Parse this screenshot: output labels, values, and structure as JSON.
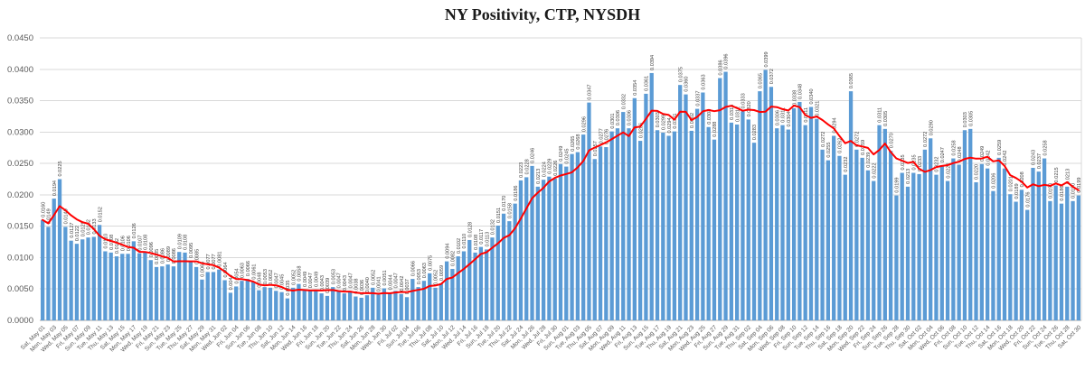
{
  "chart_data": {
    "type": "bar",
    "title": "NY Positivity, CTP, NYSDH",
    "xlabel": "",
    "ylabel": "",
    "ylim": [
      0.0,
      0.045
    ],
    "grid": true,
    "legend": "none",
    "y_ticks": [
      "0.0000",
      "0.0050",
      "0.0100",
      "0.0150",
      "0.0200",
      "0.0250",
      "0.0300",
      "0.0350",
      "0.0400",
      "0.0450"
    ],
    "bar_color": "#5B9BD5",
    "label_color": "#404040",
    "tick_color": "#595959",
    "grid_color": "#D9D9D9",
    "trend_line": {
      "type": "moving_average",
      "window": 7,
      "color": "#FF0000"
    },
    "x_label_every": 2,
    "x_labels": [
      "Sat, May 01",
      "Mon, May 03",
      "Wed, May 05",
      "Fri, May 07",
      "Sun, May 09",
      "Tue, May 11",
      "Thu, May 13",
      "Sat, May 15",
      "Mon, May 17",
      "Wed, May 19",
      "Fri, May 21",
      "Sun, May 23",
      "Tue, May 25",
      "Thu, May 27",
      "Sat, May 29",
      "Mon, May 31",
      "Wed, Jun 02",
      "Fri, Jun 04",
      "Sun, Jun 06",
      "Tue, Jun 08",
      "Thu, Jun 10",
      "Sat, Jun 12",
      "Mon, Jun 14",
      "Wed, Jun 16",
      "Fri, Jun 18",
      "Sun, Jun 20",
      "Tue, Jun 22",
      "Thu, Jun 24",
      "Sat, Jun 26",
      "Mon, Jun 28",
      "Wed, Jun 30",
      "Fri, Jul 02",
      "Sun, Jul 04",
      "Tue, Jul 06",
      "Thu, Jul 08",
      "Sat, Jul 10",
      "Mon, Jul 12",
      "Wed, Jul 14",
      "Fri, Jul 16",
      "Sun, Jul 18",
      "Tue, Jul 20",
      "Thu, Jul 22",
      "Sat, Jul 24",
      "Mon, Jul 26",
      "Wed, Jul 28",
      "Fri, Jul 30",
      "Sun, Aug 01",
      "Tue, Aug 03",
      "Thu, Aug 05",
      "Sat, Aug 07",
      "Mon, Aug 09",
      "Wed, Aug 11",
      "Fri, Aug 13",
      "Sun, Aug 15",
      "Tue, Aug 17",
      "Thu, Aug 19",
      "Sat, Aug 21",
      "Mon, Aug 23",
      "Wed, Aug 25",
      "Fri, Aug 27",
      "Sun, Aug 29",
      "Tue, Aug 31",
      "Thu, Sep 02",
      "Sat, Sep 04",
      "Mon, Sep 06",
      "Wed, Sep 08",
      "Fri, Sep 10",
      "Sun, Sep 12",
      "Tue, Sep 14",
      "Thu, Sep 16",
      "Sat, Sep 18",
      "Mon, Sep 20",
      "Wed, Sep 22",
      "Fri, Sep 24",
      "Sun, Sep 26",
      "Tue, Sep 28",
      "Thu, Sep 30",
      "Sat, Oct 02",
      "Mon, Oct 04",
      "Wed, Oct 06",
      "Fri, Oct 08",
      "Sun, Oct 10",
      "Tue, Oct 12",
      "Thu, Oct 14",
      "Sat, Oct 16",
      "Mon, Oct 18",
      "Wed, Oct 20",
      "Fri, Oct 22",
      "Sun, Oct 24",
      "Tue, Oct 26",
      "Thu, Oct 28",
      "Sat, Oct 30"
    ],
    "values": [
      0.016,
      0.0149,
      0.0194,
      0.0225,
      0.0149,
      0.0127,
      0.0122,
      0.0129,
      0.0132,
      0.0133,
      0.0152,
      0.011,
      0.0108,
      0.0102,
      0.0106,
      0.0106,
      0.0126,
      0.0107,
      0.0108,
      0.0096,
      0.0085,
      0.0086,
      0.0089,
      0.0086,
      0.0109,
      0.0108,
      0.0095,
      0.0085,
      0.0065,
      0.0077,
      0.0077,
      0.0081,
      0.0064,
      0.0044,
      0.0054,
      0.0063,
      0.0066,
      0.0061,
      0.0048,
      0.0053,
      0.0052,
      0.0047,
      0.0045,
      0.0035,
      0.0052,
      0.0058,
      0.0049,
      0.0047,
      0.0049,
      0.0043,
      0.0039,
      0.0053,
      0.0047,
      0.0043,
      0.0047,
      0.0038,
      0.0036,
      0.004,
      0.0052,
      0.0041,
      0.0051,
      0.0044,
      0.0047,
      0.0042,
      0.0037,
      0.0066,
      0.0053,
      0.0063,
      0.0075,
      0.0052,
      0.0059,
      0.0094,
      0.0082,
      0.0102,
      0.011,
      0.0128,
      0.0108,
      0.0117,
      0.0113,
      0.0132,
      0.0151,
      0.017,
      0.0158,
      0.0186,
      0.0223,
      0.0228,
      0.0246,
      0.0213,
      0.0224,
      0.0229,
      0.0226,
      0.0249,
      0.0245,
      0.0265,
      0.0268,
      0.0296,
      0.0347,
      0.0257,
      0.0277,
      0.0276,
      0.0301,
      0.0306,
      0.0332,
      0.0306,
      0.0354,
      0.0286,
      0.0361,
      0.0394,
      0.0303,
      0.0299,
      0.0294,
      0.0301,
      0.0375,
      0.036,
      0.0302,
      0.0337,
      0.0363,
      0.0308,
      0.0288,
      0.0386,
      0.0396,
      0.0315,
      0.0312,
      0.0333,
      0.032,
      0.0283,
      0.0365,
      0.0399,
      0.0372,
      0.0306,
      0.0311,
      0.0304,
      0.0338,
      0.0348,
      0.0311,
      0.034,
      0.0321,
      0.0272,
      0.0255,
      0.0294,
      0.0262,
      0.0232,
      0.0365,
      0.0272,
      0.0259,
      0.0239,
      0.0222,
      0.0311,
      0.0305,
      0.027,
      0.0199,
      0.0235,
      0.0213,
      0.0235,
      0.0233,
      0.0272,
      0.029,
      0.0232,
      0.0247,
      0.0222,
      0.0258,
      0.0248,
      0.0303,
      0.0305,
      0.022,
      0.0249,
      0.0242,
      0.0206,
      0.0259,
      0.0242,
      0.0201,
      0.0189,
      0.0208,
      0.0176,
      0.0243,
      0.0237,
      0.0258,
      0.019,
      0.0215,
      0.0186,
      0.0213,
      0.019,
      0.0199
    ]
  }
}
